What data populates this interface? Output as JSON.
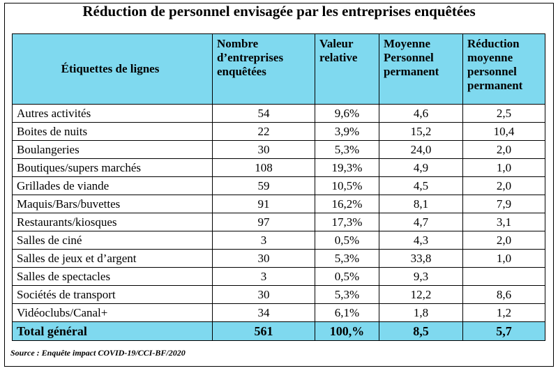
{
  "title": "Réduction de personnel envisagée par les entreprises enquêtées",
  "headers": [
    "Étiquettes de lignes",
    "Nombre d’entreprises enquêtées",
    "Valeur relative",
    "Moyenne Personnel permanent",
    "Réduction moyenne personnel permanent"
  ],
  "rows": [
    [
      "Autres activités",
      "54",
      "9,6%",
      "4,6",
      "2,5"
    ],
    [
      "Boites de nuits",
      "22",
      "3,9%",
      "15,2",
      "10,4"
    ],
    [
      "Boulangeries",
      "30",
      "5,3%",
      "24,0",
      "2,0"
    ],
    [
      "Boutiques/supers marchés",
      "108",
      "19,3%",
      "4,9",
      "1,0"
    ],
    [
      "Grillades de viande",
      "59",
      "10,5%",
      "4,5",
      "2,0"
    ],
    [
      "Maquis/Bars/buvettes",
      "91",
      "16,2%",
      "8,1",
      "7,9"
    ],
    [
      "Restaurants/kiosques",
      "97",
      "17,3%",
      "4,7",
      "3,1"
    ],
    [
      "Salles de ciné",
      "3",
      "0,5%",
      "4,3",
      "2,0"
    ],
    [
      "Salles de jeux et d’argent",
      "30",
      "5,3%",
      "33,8",
      "1,0"
    ],
    [
      "Salles de spectacles",
      "3",
      "0,5%",
      "9,3",
      ""
    ],
    [
      "Sociétés de transport",
      "30",
      "5,3%",
      "12,2",
      "8,6"
    ],
    [
      "Vidéoclubs/Canal+",
      "34",
      "6,1%",
      "1,8",
      "1,2"
    ]
  ],
  "total": [
    "Total général",
    "561",
    "100,%",
    "8,5",
    "5,7"
  ],
  "source": "Source : Enquête impact COVID-19/CCI-BF/2020"
}
